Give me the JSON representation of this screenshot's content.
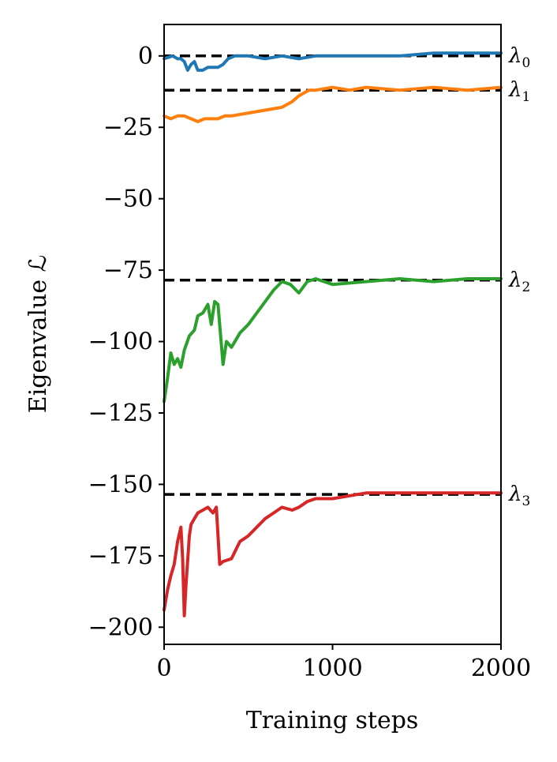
{
  "chart_data": {
    "type": "line",
    "title": "",
    "xlabel": "Training steps",
    "ylabel": "Eigenvalue ℒ",
    "xlim": [
      0,
      2000
    ],
    "ylim": [
      -206,
      11
    ],
    "xticks": [
      0,
      1000,
      2000
    ],
    "xtick_labels": [
      "0",
      "1000",
      "2000"
    ],
    "yticks": [
      0,
      -25,
      -50,
      -75,
      -100,
      -125,
      -150,
      -175,
      -200
    ],
    "ytick_labels": [
      "0",
      "−25",
      "−50",
      "−75",
      "−100",
      "−125",
      "−150",
      "−175",
      "−200"
    ],
    "grid": false,
    "legend": "none",
    "reference_lines": [
      {
        "label": "λ",
        "sub": "0",
        "y": 0,
        "color": "#000000"
      },
      {
        "label": "λ",
        "sub": "1",
        "y": -12,
        "color": "#000000"
      },
      {
        "label": "λ",
        "sub": "2",
        "y": -78.5,
        "color": "#000000"
      },
      {
        "label": "λ",
        "sub": "3",
        "y": -153.5,
        "color": "#000000"
      }
    ],
    "series": [
      {
        "color": "#1f77b4",
        "x": [
          0,
          50,
          80,
          100,
          120,
          140,
          160,
          180,
          200,
          230,
          260,
          290,
          320,
          350,
          380,
          420,
          500,
          600,
          700,
          800,
          900,
          1000,
          1200,
          1400,
          1600,
          1800,
          2000
        ],
        "y": [
          -1,
          0,
          -1,
          -1,
          -2,
          -5,
          -3,
          -2,
          -5,
          -5,
          -4,
          -4,
          -4,
          -3,
          -1,
          0,
          0,
          -1,
          0,
          -1,
          0,
          0,
          0,
          0,
          1,
          1,
          1
        ]
      },
      {
        "color": "#ff7f0e",
        "x": [
          0,
          40,
          80,
          120,
          160,
          200,
          240,
          280,
          320,
          360,
          400,
          500,
          600,
          700,
          760,
          800,
          830,
          860,
          900,
          1000,
          1100,
          1200,
          1400,
          1600,
          1800,
          2000
        ],
        "y": [
          -21,
          -22,
          -21,
          -21,
          -22,
          -23,
          -22,
          -22,
          -22,
          -21,
          -21,
          -20,
          -19,
          -18,
          -16,
          -14,
          -13,
          -12,
          -12,
          -11,
          -12,
          -11,
          -12,
          -11,
          -12,
          -11
        ]
      },
      {
        "color": "#2ca02c",
        "x": [
          0,
          20,
          40,
          60,
          80,
          100,
          120,
          150,
          180,
          200,
          230,
          260,
          280,
          300,
          320,
          350,
          370,
          400,
          450,
          500,
          550,
          600,
          650,
          700,
          750,
          800,
          850,
          900,
          1000,
          1200,
          1400,
          1600,
          1800,
          2000
        ],
        "y": [
          -121,
          -113,
          -104,
          -108,
          -106,
          -109,
          -103,
          -98,
          -96,
          -91,
          -90,
          -87,
          -94,
          -86,
          -87,
          -108,
          -100,
          -102,
          -97,
          -94,
          -90,
          -86,
          -82,
          -79,
          -80,
          -83,
          -79,
          -78,
          -80,
          -79,
          -78,
          -79,
          -78,
          -78
        ]
      },
      {
        "color": "#d62728",
        "x": [
          0,
          20,
          40,
          60,
          80,
          100,
          110,
          120,
          130,
          150,
          160,
          180,
          200,
          230,
          260,
          290,
          310,
          330,
          350,
          400,
          450,
          500,
          550,
          600,
          650,
          700,
          760,
          800,
          850,
          900,
          1000,
          1200,
          1400,
          1600,
          1800,
          2000
        ],
        "y": [
          -194,
          -187,
          -182,
          -178,
          -170,
          -165,
          -176,
          -196,
          -185,
          -168,
          -164,
          -162,
          -160,
          -159,
          -158,
          -160,
          -158,
          -178,
          -177,
          -176,
          -170,
          -168,
          -165,
          -162,
          -160,
          -158,
          -159,
          -158,
          -156,
          -155,
          -155,
          -153,
          -153,
          -153,
          -153,
          -153
        ]
      }
    ]
  }
}
